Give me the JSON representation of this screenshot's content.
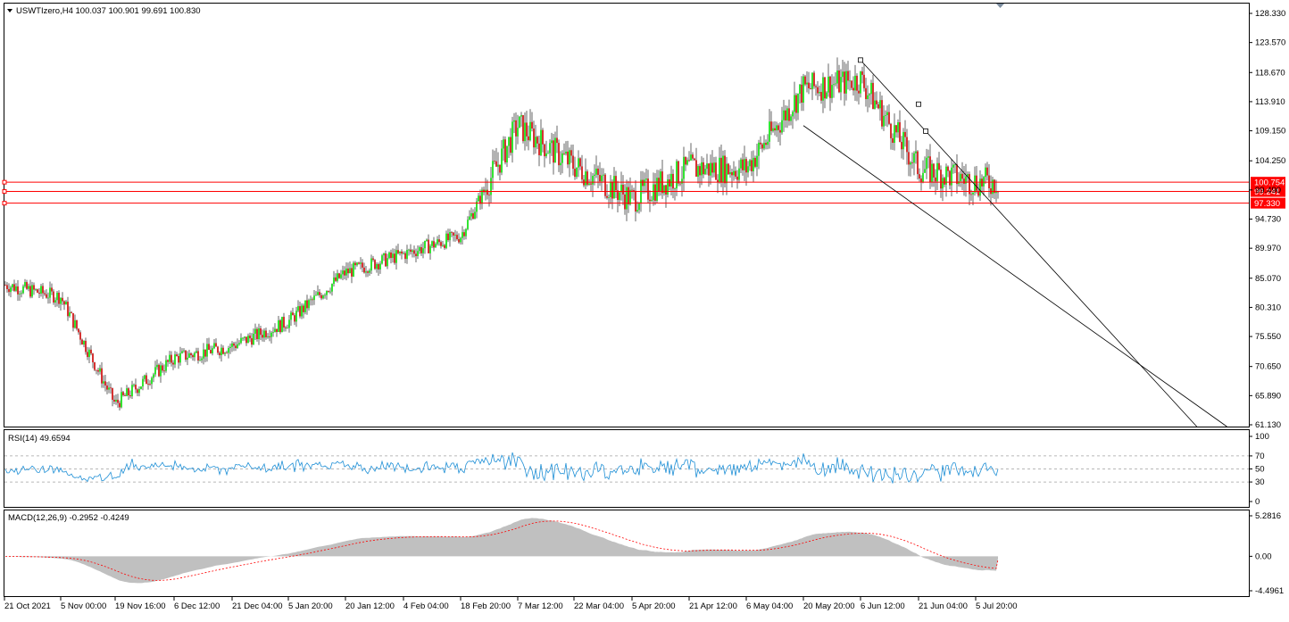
{
  "header": {
    "symbol_line": "USWTIzero,H4  100.037 100.901 99.691 100.830",
    "dropdown_icon": "triangle-down-icon"
  },
  "colors": {
    "bull": "#00dd00",
    "bear": "#cc0000",
    "wick": "#000000",
    "level_line": "#ff0000",
    "channel": "#000000",
    "rsi_line": "#1e8fd6",
    "macd_hist": "#c0c0c0",
    "macd_signal": "#ff0000"
  },
  "main_axis": {
    "ticks": [
      "128.330",
      "123.570",
      "118.670",
      "113.910",
      "109.150",
      "104.250",
      "99.490",
      "94.730",
      "89.970",
      "85.070",
      "80.310",
      "75.550",
      "70.650",
      "65.890",
      "61.130"
    ],
    "ylim": [
      61.13,
      128.33
    ]
  },
  "price_levels": [
    {
      "label": "100.754",
      "value": 100.754
    },
    {
      "label": "99.241",
      "value": 99.241
    },
    {
      "label": "97.330",
      "value": 97.33
    }
  ],
  "rsi": {
    "title": "RSI(14) 49.6594",
    "ticks": [
      "100",
      "70",
      "50",
      "30",
      "0"
    ],
    "levels": [
      70,
      50,
      30
    ]
  },
  "macd": {
    "title": "MACD(12,26,9) -0.2952 -0.4249",
    "ticks": [
      "5.2816",
      "0.00",
      "-4.4961"
    ],
    "ylim": [
      -4.4961,
      5.2816
    ]
  },
  "time_axis": {
    "labels": [
      "21 Oct 2021",
      "5 Nov 00:00",
      "19 Nov 16:00",
      "6 Dec 12:00",
      "21 Dec 04:00",
      "5 Jan 20:00",
      "20 Jan 12:00",
      "4 Feb 04:00",
      "18 Feb 20:00",
      "7 Mar 12:00",
      "22 Mar 04:00",
      "5 Apr 20:00",
      "21 Apr 12:00",
      "6 May 04:00",
      "20 May 20:00",
      "6 Jun 12:00",
      "21 Jun 04:00",
      "5 Jul 20:00"
    ]
  },
  "chart_data": {
    "type": "line",
    "series": [
      {
        "x": [
          "21 Oct 2021",
          "5 Nov 00:00",
          "19 Nov 16:00",
          "6 Dec 12:00",
          "21 Dec 04:00",
          "5 Jan 20:00",
          "20 Jan 12:00",
          "4 Feb 04:00",
          "18 Feb 20:00",
          "7 Mar 12:00",
          "22 Mar 04:00",
          "5 Apr 20:00",
          "21 Apr 12:00",
          "6 May 04:00",
          "20 May 20:00",
          "6 Jun 12:00",
          "21 Jun 04:00",
          "5 Jul 20:00"
        ],
        "values": [
          84.0,
          82.0,
          64.5,
          72.0,
          74.0,
          78.0,
          86.0,
          89.0,
          92.0,
          110.0,
          103.5,
          98.0,
          103.0,
          103.0,
          116.0,
          117.5,
          103.0,
          100.8
        ]
      }
    ],
    "channel_upper": [
      {
        "x": "6 Jun 12:00",
        "y": 120.7
      },
      {
        "x": "5 Jul 20:00",
        "y": 100.2
      }
    ],
    "channel_lower": [
      {
        "x": "20 May 20:00",
        "y": 110.0
      },
      {
        "x": "5 Jul 20:00",
        "y": 90.0
      }
    ],
    "channel_points": [
      {
        "x": "6 Jun 12:00",
        "y": 120.7
      },
      {
        "x": "21 Jun 04:00",
        "y": 113.5
      }
    ],
    "rsi_last": 49.6594,
    "macd_last": -0.2952,
    "macd_signal_last": -0.4249
  }
}
